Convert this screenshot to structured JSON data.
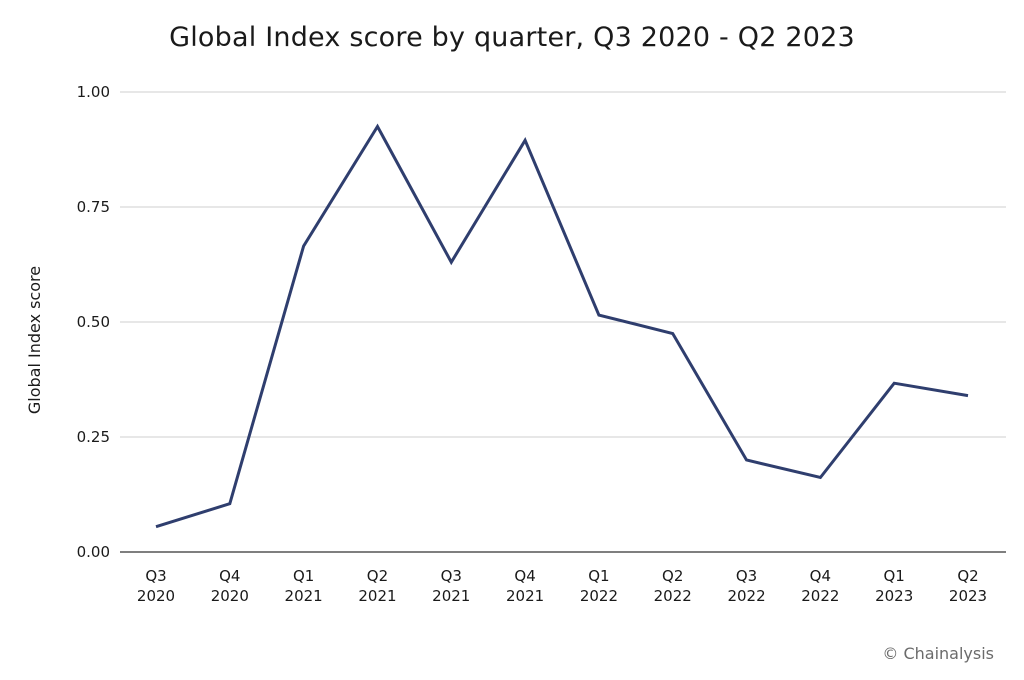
{
  "chart_data": {
    "type": "line",
    "title": "Global Index score by quarter, Q3 2020 - Q2 2023",
    "xlabel": "",
    "ylabel": "Global Index score",
    "categories": [
      [
        "Q3",
        "2020"
      ],
      [
        "Q4",
        "2020"
      ],
      [
        "Q1",
        "2021"
      ],
      [
        "Q2",
        "2021"
      ],
      [
        "Q3",
        "2021"
      ],
      [
        "Q4",
        "2021"
      ],
      [
        "Q1",
        "2022"
      ],
      [
        "Q2",
        "2022"
      ],
      [
        "Q3",
        "2022"
      ],
      [
        "Q4",
        "2022"
      ],
      [
        "Q1",
        "2023"
      ],
      [
        "Q2",
        "2023"
      ]
    ],
    "series": [
      {
        "color": "#2f3e6e",
        "values": [
          0.055,
          0.105,
          0.665,
          0.925,
          0.63,
          0.895,
          0.515,
          0.475,
          0.2,
          0.162,
          0.367,
          0.34
        ]
      }
    ],
    "ylim": [
      0,
      1
    ],
    "yticks": [
      "0.00",
      "0.25",
      "0.50",
      "0.75",
      "1.00"
    ],
    "ytick_values": [
      0,
      0.25,
      0.5,
      0.75,
      1.0
    ],
    "grid": true,
    "grid_color": "#cfcfcf",
    "axis_color": "#333333",
    "legend": "none"
  },
  "footer": {
    "copyright": "© Chainalysis"
  }
}
